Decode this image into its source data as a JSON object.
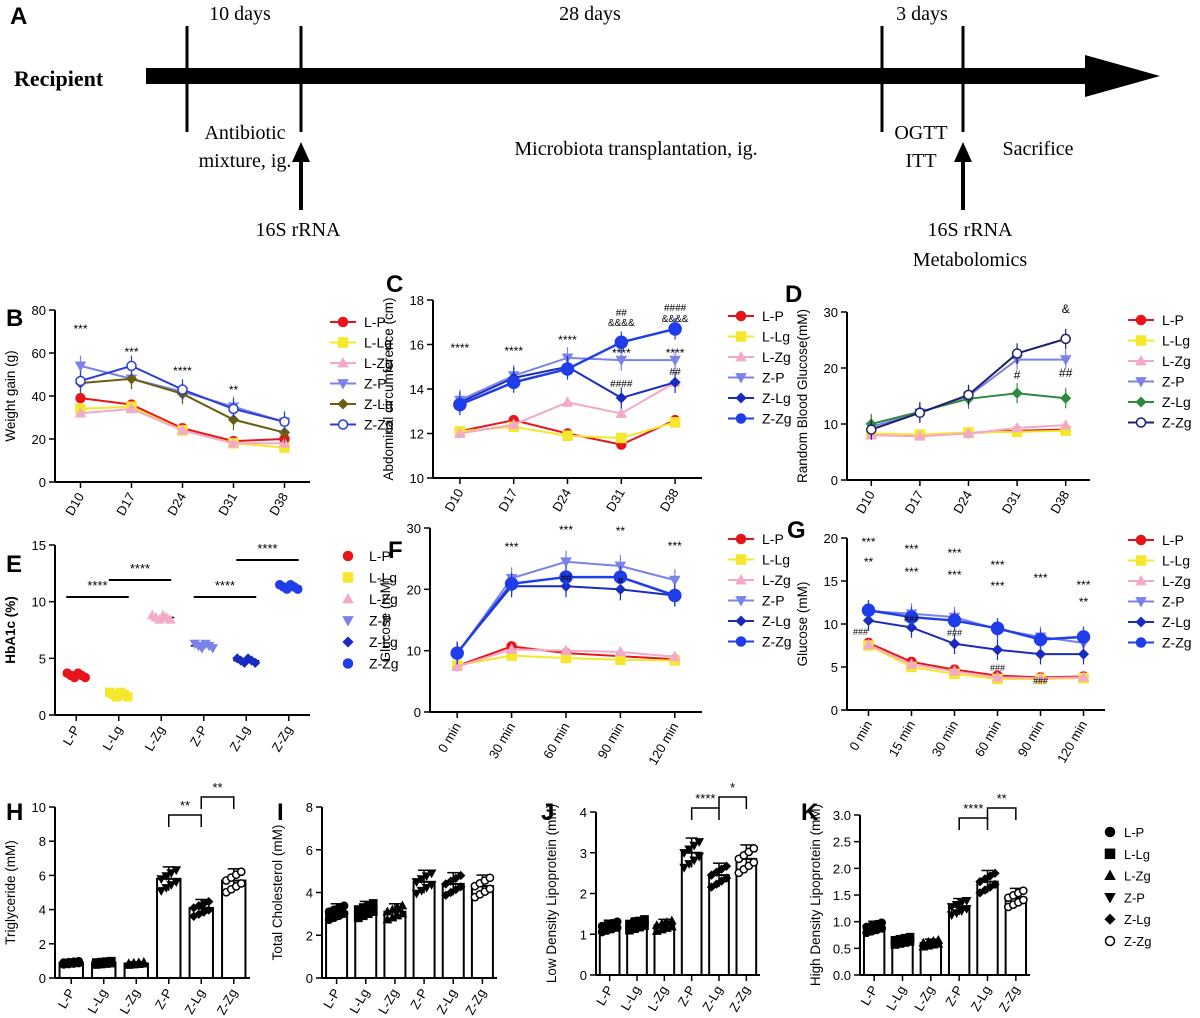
{
  "timeline": {
    "panel_label": "A",
    "recipient_label": "Recipient",
    "durations": [
      "10 days",
      "28 days",
      "3 days"
    ],
    "stages": [
      "Antibiotic",
      "mixture, ig.",
      "Microbiota transplantation, ig.",
      "OGTT",
      "ITT",
      "Sacrifice"
    ],
    "sampling": [
      "16S rRNA",
      "16S rRNA",
      "Metabolomics"
    ]
  },
  "colors": {
    "L-P": "#e8141b",
    "L-Lg": "#f5e82c",
    "L-Zg": "#f2aac8",
    "Z-P": "#7b83e8",
    "Z-Lg": "#1a2bbf",
    "Z-Zg": "#1f3de8",
    "Z-Lg-B": "#6b5e0f",
    "Z-Zg-B": "#2a3fd6",
    "Z-Lg-D": "#2e8b3e",
    "Z-Zg-D": "#1d1f6b"
  },
  "chart_data": [
    {
      "panel": "B",
      "type": "line",
      "title": "",
      "xlabel": "",
      "ylabel": "Weight gain (g)",
      "ylim": [
        0,
        80
      ],
      "yticks": [
        0,
        20,
        40,
        60,
        80
      ],
      "categories": [
        "D10",
        "D17",
        "D24",
        "D31",
        "D38"
      ],
      "legend": [
        "L-P",
        "L-Lg",
        "L-Zg",
        "Z-P",
        "Z-Lg",
        "Z-Zg"
      ],
      "series": [
        {
          "name": "L-P",
          "values": [
            39,
            36,
            25,
            19,
            20
          ]
        },
        {
          "name": "L-Lg",
          "values": [
            34,
            35,
            24,
            18,
            16
          ]
        },
        {
          "name": "L-Zg",
          "values": [
            32,
            34,
            24,
            18,
            18
          ]
        },
        {
          "name": "Z-P",
          "values": [
            54,
            48,
            42,
            35,
            28
          ]
        },
        {
          "name": "Z-Lg",
          "values": [
            46,
            48,
            41,
            29,
            23
          ]
        },
        {
          "name": "Z-Zg",
          "values": [
            47,
            54,
            43,
            34,
            28
          ]
        }
      ],
      "annotations": [
        "***",
        "***",
        "****",
        "**"
      ]
    },
    {
      "panel": "C",
      "type": "line",
      "title": "",
      "xlabel": "",
      "ylabel": "Abdominal circumference (cm)",
      "ylim": [
        10,
        18
      ],
      "yticks": [
        10,
        12,
        14,
        16,
        18
      ],
      "categories": [
        "D10",
        "D17",
        "D24",
        "D31",
        "D38"
      ],
      "legend": [
        "L-P",
        "L-Lg",
        "L-Zg",
        "Z-P",
        "Z-Lg",
        "Z-Zg"
      ],
      "series": [
        {
          "name": "L-P",
          "values": [
            12.1,
            12.6,
            12.0,
            11.5,
            12.6
          ]
        },
        {
          "name": "L-Lg",
          "values": [
            12.1,
            12.3,
            11.9,
            11.8,
            12.5
          ]
        },
        {
          "name": "L-Zg",
          "values": [
            12.0,
            12.4,
            13.4,
            12.9,
            14.3
          ]
        },
        {
          "name": "Z-P",
          "values": [
            13.5,
            14.6,
            15.4,
            15.3,
            15.3
          ]
        },
        {
          "name": "Z-Lg",
          "values": [
            13.4,
            14.5,
            15.0,
            13.6,
            14.3
          ]
        },
        {
          "name": "Z-Zg",
          "values": [
            13.3,
            14.3,
            14.9,
            16.1,
            16.7
          ]
        }
      ],
      "annotations": [
        "****",
        "****",
        "****",
        "****",
        "****",
        "##",
        "&&&&",
        "####",
        "####",
        "&&&&",
        "##"
      ]
    },
    {
      "panel": "D",
      "type": "line",
      "title": "",
      "xlabel": "",
      "ylabel": "Random Blood Glucose(mM)",
      "ylim": [
        0,
        30
      ],
      "yticks": [
        0,
        10,
        20,
        30
      ],
      "categories": [
        "D10",
        "D17",
        "D24",
        "D31",
        "D38"
      ],
      "legend": [
        "L-P",
        "L-Lg",
        "L-Zg",
        "Z-P",
        "Z-Lg",
        "Z-Zg"
      ],
      "series": [
        {
          "name": "L-P",
          "values": [
            8.2,
            8.0,
            8.4,
            8.8,
            9.0
          ]
        },
        {
          "name": "L-Lg",
          "values": [
            8.3,
            8.1,
            8.5,
            8.6,
            8.8
          ]
        },
        {
          "name": "L-Zg",
          "values": [
            8.0,
            7.8,
            8.3,
            9.3,
            9.8
          ]
        },
        {
          "name": "Z-P",
          "values": [
            9.5,
            12.0,
            15.0,
            21.5,
            21.5
          ]
        },
        {
          "name": "Z-Lg",
          "values": [
            10.0,
            12.2,
            14.5,
            15.5,
            14.6
          ]
        },
        {
          "name": "Z-Zg",
          "values": [
            9.0,
            12.0,
            15.2,
            22.6,
            25.2
          ]
        }
      ],
      "annotations": [
        "&",
        "#",
        "##"
      ]
    },
    {
      "panel": "E",
      "type": "scatter",
      "title": "",
      "xlabel": "",
      "ylabel": "HbA1c (%)",
      "ylim": [
        0,
        15
      ],
      "yticks": [
        0,
        5,
        10,
        15
      ],
      "categories": [
        "L-P",
        "L-Lg",
        "L-Zg",
        "Z-P",
        "Z-Lg",
        "Z-Zg"
      ],
      "values": [
        3.5,
        1.8,
        8.6,
        6.1,
        4.8,
        11.3
      ],
      "legend": [
        "L-P",
        "L-Lg",
        "L-Zg",
        "Z-P",
        "Z-Lg",
        "Z-Zg"
      ],
      "annotations": [
        "****",
        "****",
        "****",
        "****"
      ]
    },
    {
      "panel": "F",
      "type": "line",
      "title": "",
      "xlabel": "",
      "ylabel": "Glucose (mM)",
      "ylim": [
        0,
        30
      ],
      "yticks": [
        0,
        10,
        20,
        30
      ],
      "categories": [
        "0 min",
        "30 min",
        "60 min",
        "90 min",
        "120 min"
      ],
      "legend": [
        "L-P",
        "L-Lg",
        "L-Zg",
        "Z-P",
        "Z-Lg",
        "Z-Zg"
      ],
      "series": [
        {
          "name": "L-P",
          "values": [
            7.5,
            10.7,
            9.6,
            9.1,
            8.6
          ]
        },
        {
          "name": "L-Lg",
          "values": [
            7.6,
            9.2,
            8.8,
            8.5,
            8.4
          ]
        },
        {
          "name": "L-Zg",
          "values": [
            7.4,
            10.2,
            10.0,
            9.8,
            9.0
          ]
        },
        {
          "name": "Z-P",
          "values": [
            9.5,
            21.8,
            24.5,
            23.8,
            21.5
          ]
        },
        {
          "name": "Z-Lg",
          "values": [
            9.7,
            20.5,
            20.5,
            20.0,
            19.0
          ]
        },
        {
          "name": "Z-Zg",
          "values": [
            9.6,
            20.9,
            22.0,
            22.0,
            19.0
          ]
        }
      ],
      "annotations": [
        "***",
        "***",
        "**",
        "***",
        "##",
        "#"
      ]
    },
    {
      "panel": "G",
      "type": "line",
      "title": "",
      "xlabel": "",
      "ylabel": "Glucose (mM)",
      "ylim": [
        0,
        20
      ],
      "yticks": [
        0,
        5,
        10,
        15,
        20
      ],
      "categories": [
        "0 min",
        "15 min",
        "30 min",
        "60 min",
        "90 min",
        "120 min"
      ],
      "legend": [
        "L-P",
        "L-Lg",
        "L-Zg",
        "Z-P",
        "Z-Lg",
        "Z-Zg"
      ],
      "series": [
        {
          "name": "L-P",
          "values": [
            7.8,
            5.6,
            4.7,
            4.0,
            3.8,
            3.9
          ]
        },
        {
          "name": "L-Lg",
          "values": [
            7.5,
            5.0,
            4.2,
            3.6,
            3.6,
            3.7
          ]
        },
        {
          "name": "L-Zg",
          "values": [
            7.6,
            5.3,
            4.5,
            3.8,
            3.7,
            3.8
          ]
        },
        {
          "name": "Z-P",
          "values": [
            11.5,
            11.2,
            10.8,
            9.4,
            8.5,
            7.8
          ]
        },
        {
          "name": "Z-Lg",
          "values": [
            10.4,
            9.6,
            7.7,
            7.0,
            6.5,
            6.5
          ]
        },
        {
          "name": "Z-Zg",
          "values": [
            11.6,
            10.8,
            10.4,
            9.5,
            8.2,
            8.5
          ]
        }
      ],
      "annotations": [
        "***",
        "***",
        "***",
        "***",
        "***",
        "***",
        "***",
        "***",
        "***",
        "**",
        "**",
        "###",
        "###",
        "###",
        "###",
        "###"
      ]
    },
    {
      "panel": "H",
      "type": "bar",
      "title": "",
      "xlabel": "",
      "ylabel": "Triglyceride (mM)",
      "ylim": [
        0,
        10
      ],
      "yticks": [
        0,
        2,
        4,
        6,
        8,
        10
      ],
      "categories": [
        "L-P",
        "L-Lg",
        "L-Zg",
        "Z-P",
        "Z-Lg",
        "Z-Zg"
      ],
      "values": [
        0.9,
        0.9,
        0.85,
        5.8,
        4.1,
        5.7
      ],
      "annotations": [
        "**",
        "**"
      ]
    },
    {
      "panel": "I",
      "type": "bar",
      "title": "",
      "xlabel": "",
      "ylabel": "Total Cholesterol (mM)",
      "ylim": [
        0,
        8
      ],
      "yticks": [
        0,
        2,
        4,
        6,
        8
      ],
      "categories": [
        "L-P",
        "L-Lg",
        "L-Zg",
        "Z-P",
        "Z-Lg",
        "Z-Zg"
      ],
      "values": [
        3.1,
        3.2,
        3.1,
        4.5,
        4.4,
        4.3
      ],
      "annotations": []
    },
    {
      "panel": "J",
      "type": "bar",
      "title": "",
      "xlabel": "",
      "ylabel": "Low Density Lipoprotein (mM)",
      "ylim": [
        0,
        4
      ],
      "yticks": [
        0,
        1,
        2,
        3,
        4
      ],
      "categories": [
        "L-P",
        "L-Lg",
        "L-Zg",
        "Z-P",
        "Z-Lg",
        "Z-Zg"
      ],
      "values": [
        1.2,
        1.25,
        1.22,
        3.0,
        2.45,
        2.85
      ],
      "annotations": [
        "****",
        "*"
      ]
    },
    {
      "panel": "K",
      "type": "bar",
      "title": "",
      "xlabel": "",
      "ylabel": "High Density Lipoprotein (mM)",
      "ylim": [
        0,
        3
      ],
      "yticks": [
        0.0,
        0.5,
        1.0,
        1.5,
        2.0,
        2.5,
        3.0
      ],
      "categories": [
        "L-P",
        "L-Lg",
        "L-Zg",
        "Z-P",
        "Z-Lg",
        "Z-Zg"
      ],
      "values": [
        0.9,
        0.65,
        0.6,
        1.28,
        1.75,
        1.45
      ],
      "annotations": [
        "****",
        "**"
      ],
      "legend": [
        "L-P",
        "L-Lg",
        "L-Zg",
        "Z-P",
        "Z-Lg",
        "Z-Zg"
      ]
    }
  ]
}
